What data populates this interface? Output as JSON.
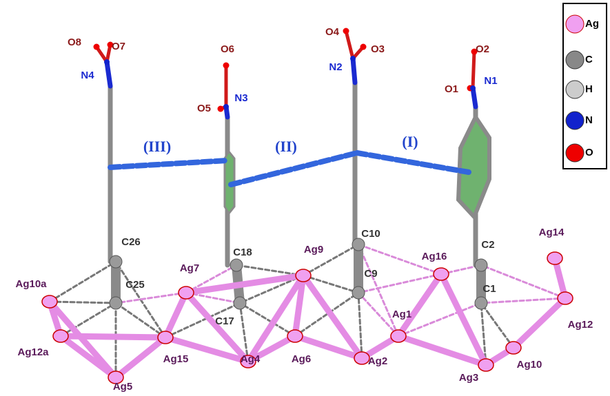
{
  "oxygen_labels": [
    "O8",
    "O7",
    "O6",
    "O5",
    "O4",
    "O3",
    "O2",
    "O1"
  ],
  "nitrogen_labels": [
    "N4",
    "N3",
    "N2",
    "N1"
  ],
  "carbon_labels": [
    "C26",
    "C25",
    "C18",
    "C17",
    "C10",
    "C9",
    "C2",
    "C1"
  ],
  "silver_labels": [
    "Ag10a",
    "Ag12a",
    "Ag5",
    "Ag15",
    "Ag7",
    "Ag4",
    "Ag9",
    "Ag6",
    "Ag2",
    "Ag1",
    "Ag16",
    "Ag3",
    "Ag10",
    "Ag12",
    "Ag14"
  ],
  "interaction_labels": [
    "(III)",
    "(II)",
    "(I)"
  ],
  "legend": [
    "Ag",
    "C",
    "H",
    "N",
    "O"
  ]
}
